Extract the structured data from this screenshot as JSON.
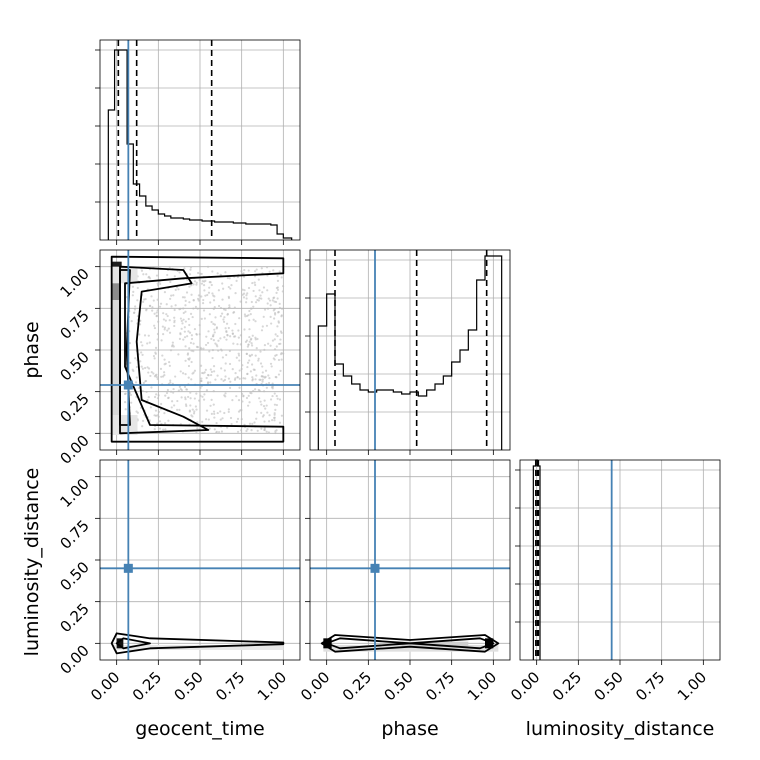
{
  "chart_data": {
    "type": "corner",
    "parameters": [
      "geocent_time",
      "phase",
      "luminosity_distance"
    ],
    "axis_ticks": [
      "0.00",
      "0.25",
      "0.50",
      "0.75",
      "1.00"
    ],
    "grid": true,
    "range": [
      0,
      1
    ],
    "truth": {
      "geocent_time": 0.07,
      "phase": 0.29,
      "luminosity_distance": 0.45
    },
    "truth_color": "#4682b4",
    "histograms": {
      "geocent_time": {
        "bin_edges": [
          -0.05,
          -0.0125,
          0.025,
          0.0625,
          0.1,
          0.1375,
          0.175,
          0.2125,
          0.25,
          0.2875,
          0.325,
          0.3625,
          0.4,
          0.4375,
          0.475,
          0.5125,
          0.55,
          0.5875,
          0.625,
          0.6625,
          0.7,
          0.7375,
          0.775,
          0.8125,
          0.85,
          0.8875,
          0.925,
          0.9625,
          1.0,
          1.05
        ],
        "counts": [
          0.65,
          0.95,
          0.95,
          0.48,
          0.28,
          0.22,
          0.17,
          0.15,
          0.13,
          0.12,
          0.11,
          0.11,
          0.105,
          0.1,
          0.1,
          0.095,
          0.095,
          0.09,
          0.09,
          0.09,
          0.085,
          0.085,
          0.08,
          0.08,
          0.08,
          0.08,
          0.075,
          0.03,
          0.01
        ],
        "quantiles": [
          0.01,
          0.12,
          0.57
        ]
      },
      "phase": {
        "bin_edges": [
          -0.05,
          0.0,
          0.05,
          0.1,
          0.15,
          0.2,
          0.25,
          0.3,
          0.35,
          0.4,
          0.45,
          0.5,
          0.55,
          0.6,
          0.65,
          0.7,
          0.75,
          0.8,
          0.85,
          0.9,
          0.95,
          1.0,
          1.05
        ],
        "counts": [
          0.62,
          0.78,
          0.43,
          0.37,
          0.33,
          0.3,
          0.29,
          0.3,
          0.3,
          0.29,
          0.28,
          0.29,
          0.27,
          0.3,
          0.33,
          0.37,
          0.44,
          0.5,
          0.6,
          0.85,
          0.97,
          0.97
        ],
        "quantiles": [
          0.05,
          0.54,
          0.96
        ]
      },
      "luminosity_distance": {
        "bin_edges": [
          -0.02,
          -0.005,
          0.005,
          0.02
        ],
        "counts": [
          0.97,
          1.0,
          0.97
        ],
        "quantiles": [
          -0.005,
          0.005,
          0.01
        ]
      }
    },
    "pairs": [
      {
        "x": "geocent_time",
        "y": "phase",
        "truth": [
          0.07,
          0.29
        ]
      },
      {
        "x": "geocent_time",
        "y": "luminosity_distance",
        "truth": [
          0.07,
          0.45
        ]
      },
      {
        "x": "phase",
        "y": "luminosity_distance",
        "truth": [
          0.29,
          0.45
        ]
      }
    ],
    "xlabel": [
      "geocent_time",
      "phase",
      "luminosity_distance"
    ],
    "ylabel": [
      "",
      "phase",
      "luminosity_distance"
    ]
  }
}
